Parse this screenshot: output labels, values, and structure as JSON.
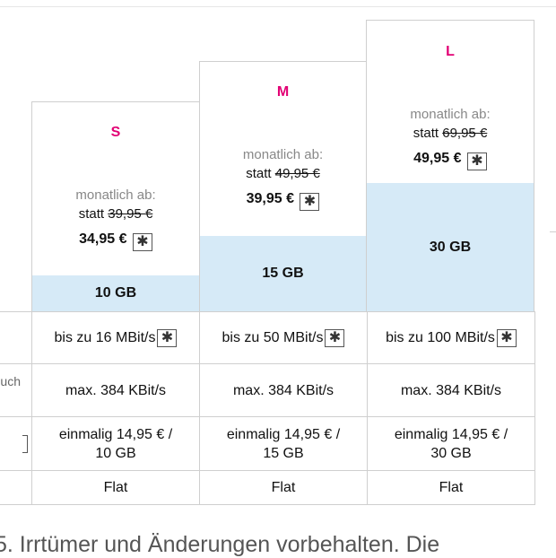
{
  "plans": [
    {
      "name": "S",
      "monthly_label": "monatlich ab:",
      "old_prefix": "statt",
      "old_price": "39,95 €",
      "new_price": "34,95 €",
      "data_volume": "10 GB",
      "speed": "bis zu 16 MBit/s",
      "throttled_speed": "max. 384 KBit/s",
      "extra_option": "einmalig 14,95 € /\n10 GB",
      "flat": "Flat"
    },
    {
      "name": "M",
      "monthly_label": "monatlich ab:",
      "old_prefix": "statt",
      "old_price": "49,95 €",
      "new_price": "39,95 €",
      "data_volume": "15 GB",
      "speed": "bis zu 50 MBit/s",
      "throttled_speed": "max. 384 KBit/s",
      "extra_option": "einmalig 14,95 € /\n15 GB",
      "flat": "Flat"
    },
    {
      "name": "L",
      "monthly_label": "monatlich ab:",
      "old_prefix": "statt",
      "old_price": "69,95 €",
      "new_price": "49,95 €",
      "data_volume": "30 GB",
      "speed": "bis zu 100 MBit/s",
      "throttled_speed": "max. 384 KBit/s",
      "extra_option": "einmalig 14,95 € /\n30 GB",
      "flat": "Flat"
    }
  ],
  "row_labels": {
    "throttled_partial": "uch"
  },
  "footer_text": "5. Irrtümer und Änderungen vorbehalten. Die",
  "colors": {
    "accent": "#e20074",
    "band": "#d6eaf7",
    "border": "#cfcfcf"
  },
  "icons": {
    "info": "asterisk-box-icon"
  }
}
